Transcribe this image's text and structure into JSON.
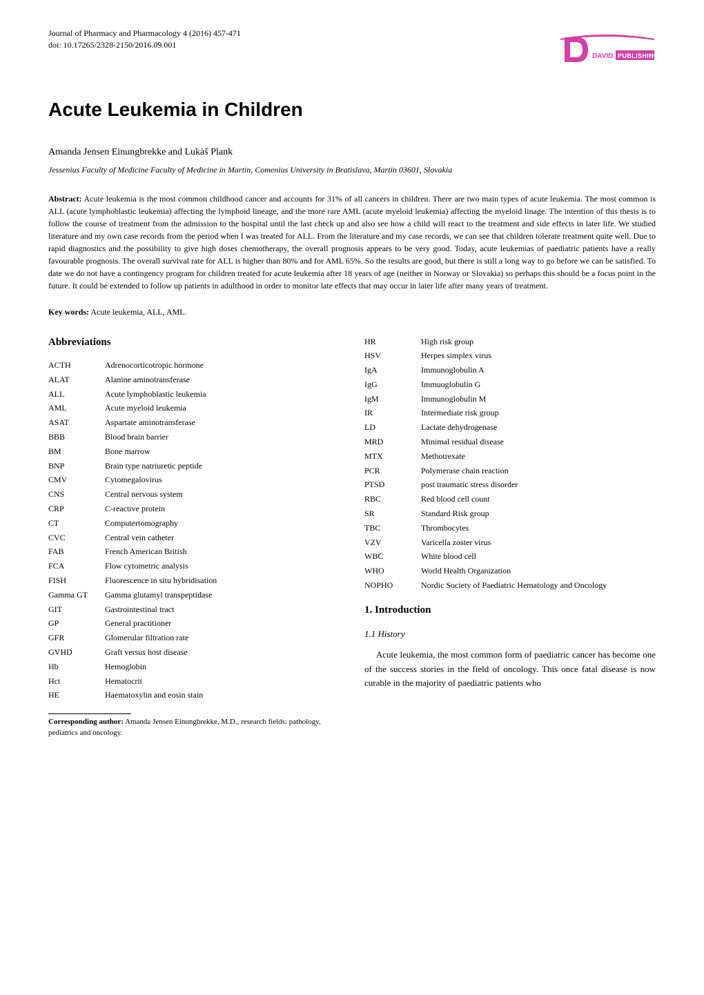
{
  "journal": {
    "line1": "Journal of Pharmacy and Pharmacology 4 (2016) 457-471",
    "line2": "doi: 10.17265/2328-2150/2016.09.001"
  },
  "logo": {
    "publisher_text": "PUBLISHING",
    "brand_text": "DAVID",
    "d_color": "#d63ea8",
    "swoosh_color": "#d63ea8",
    "pub_bg": "#d63ea8",
    "pub_text_color": "#ffffff",
    "brand_color": "#ffffff"
  },
  "title": "Acute Leukemia in Children",
  "authors": "Amanda Jensen Einungbrekke and Lukàš Plank",
  "affiliation": "Jessenius Faculty of Medicine Faculty of Medicine in Martin, Comenius University in Bratislava, Martin 03601, Slovakia",
  "abstract": {
    "label": "Abstract:",
    "text": " Acute leukemia is the most common childhood cancer and accounts for 31% of all cancers in children. There are two main types of acute leukemia. The most common is ALL (acute lymphoblastic leukemia) affecting the lymphoid lineage, and the more rare AML (acute myeloid leukemia) affecting the myeloid linage. The intention of this thesis is to follow the course of treatment from the admission to the hospital until the last check up and also see how a child will react to the treatment and side effects in later life. We studied literature and my own case records from the period when I was treated for ALL. From the literature and my case records, we can see that children tolerate treatment quite well. Due to rapid diagnostics and the possibility to give high doses chemotherapy, the overall prognosis appears to be very good. Today, acute leukemias of paediatric patients have a really favourable prognosis. The overall survival rate for ALL is higher than 80% and for AML 65%. So the results are good, but there is still a long way to go before we can be satisfied. To date we do not have a contingency program for children treated for acute leukemia after 18 years of age (neither in Norway or Slovakia) so perhaps this should be a focus point in the future. It could be extended to follow up patients in adulthood in order to monitor late effects that may occur in later life after many years of treatment."
  },
  "keywords": {
    "label": "Key words:",
    "text": " Acute leukemia, ALL, AML."
  },
  "abbrev_heading": "Abbreviations",
  "abbrev_left": [
    {
      "abbr": "ACTH",
      "def": "Adrenocorticotropic hormone"
    },
    {
      "abbr": "ALAT",
      "def": "Alanine aminotransferase"
    },
    {
      "abbr": "ALL",
      "def": "Acute lymphoblastic leukemia"
    },
    {
      "abbr": "AML",
      "def": "Acute myeloid leukemia"
    },
    {
      "abbr": "ASAT",
      "def": "Aspartate aminotransferase"
    },
    {
      "abbr": "BBB",
      "def": "Blood brain barrier"
    },
    {
      "abbr": "BM",
      "def": "Bone marrow"
    },
    {
      "abbr": "BNP",
      "def": "Brain type natriuretic peptide"
    },
    {
      "abbr": "CMV",
      "def": "Cytomegalovirus"
    },
    {
      "abbr": "CNS",
      "def": "Central nervous system"
    },
    {
      "abbr": "CRP",
      "def": "C-reactive protein"
    },
    {
      "abbr": "CT",
      "def": "Computertomography"
    },
    {
      "abbr": "CVC",
      "def": "Central vein catheter"
    },
    {
      "abbr": "FAB",
      "def": "French American British"
    },
    {
      "abbr": "FCA",
      "def": "Flow cytometric analysis"
    },
    {
      "abbr": "FISH",
      "def": "Fluorescence in situ hybridisation"
    },
    {
      "abbr": "Gamma GT",
      "def": "Gamma glutamyl transpeptidase"
    },
    {
      "abbr": "GIT",
      "def": "Gastrointestinal tract"
    },
    {
      "abbr": "GP",
      "def": "General practitioner"
    },
    {
      "abbr": "GFR",
      "def": "Glomerular filtration rate"
    },
    {
      "abbr": "GVHD",
      "def": "Graft versus host disease"
    },
    {
      "abbr": "Hb",
      "def": "Hemoglobin"
    },
    {
      "abbr": "Hct",
      "def": "Hematocrit"
    },
    {
      "abbr": "HE",
      "def": "Haematoxylin and eosin stain"
    }
  ],
  "abbrev_right": [
    {
      "abbr": "HR",
      "def": "High risk group"
    },
    {
      "abbr": "HSV",
      "def": "Herpes simplex virus"
    },
    {
      "abbr": "IgA",
      "def": "Immunoglobulin A"
    },
    {
      "abbr": "IgG",
      "def": "Immuoglobulin G"
    },
    {
      "abbr": "IgM",
      "def": "Immunoglobulin M"
    },
    {
      "abbr": "IR",
      "def": "Intermediate risk group"
    },
    {
      "abbr": "LD",
      "def": "Lactate dehydrogenase"
    },
    {
      "abbr": "MRD",
      "def": "Minimal residual disease"
    },
    {
      "abbr": "MTX",
      "def": "Methotrexate"
    },
    {
      "abbr": "PCR",
      "def": "Polymerase chain reaction"
    },
    {
      "abbr": "PTSD",
      "def": "post traumatic stress disorder"
    },
    {
      "abbr": "RBC",
      "def": "Red blood cell count"
    },
    {
      "abbr": "SR",
      "def": "Standard Risk group"
    },
    {
      "abbr": "TBC",
      "def": "Thrombocytes"
    },
    {
      "abbr": "VZV",
      "def": "Varicella zoster virus"
    },
    {
      "abbr": "WBC",
      "def": "White blood cell"
    },
    {
      "abbr": "WHO",
      "def": "World Health Organization"
    },
    {
      "abbr": "NOPHO",
      "def": "Nordic Society of Paediatric Hematology and Oncology"
    }
  ],
  "intro_heading": "1. Introduction",
  "history_heading": "1.1 History",
  "intro_text": "Acute leukemia, the most common form of paediatric cancer has become one of the success stories in the field of oncology. This once fatal disease is now curable in the majority of paediatric patients who",
  "footnote": {
    "label": "Corresponding author:",
    "text": " Amanda Jensen Einungbrekke, M.D., research fields: pathology, pediatrics and oncology."
  }
}
